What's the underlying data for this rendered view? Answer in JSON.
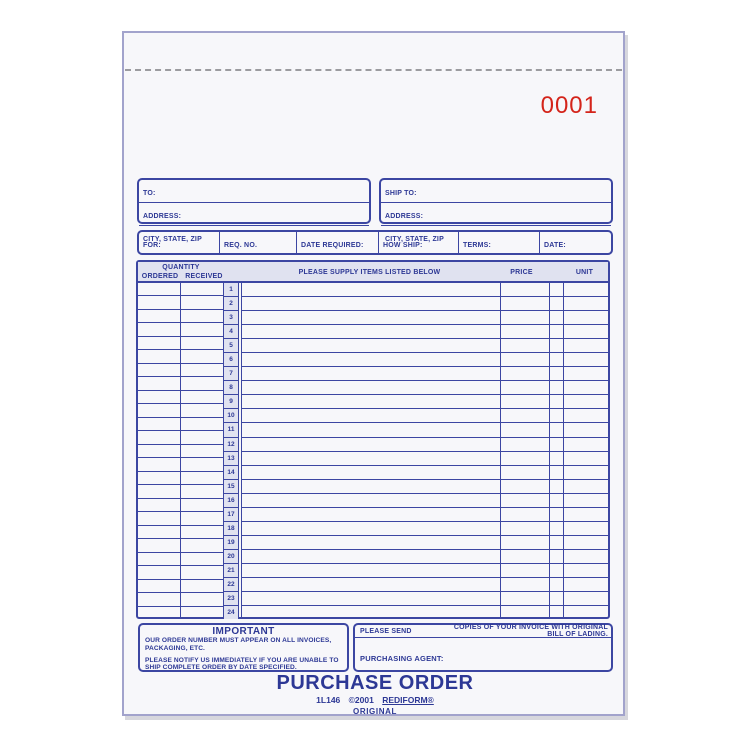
{
  "page": {
    "form_number": "0001",
    "colors": {
      "form_blue": "#2d3895",
      "number_red": "#d4241a",
      "shade_lavender": "#e0e2f0",
      "page_background": "#f7f7fa",
      "page_border": "#a2a3cc"
    }
  },
  "to_box": {
    "to_label": "TO:",
    "address_label": "ADDRESS:",
    "city_label": "CITY, STATE, ZIP"
  },
  "ship_box": {
    "ship_label": "SHIP TO:",
    "address_label": "ADDRESS:",
    "city_label": "CITY, STATE, ZIP"
  },
  "order_row": {
    "fields": [
      "FOR:",
      "REQ. NO.",
      "DATE REQUIRED:",
      "HOW SHIP:",
      "TERMS:",
      "DATE:"
    ]
  },
  "table": {
    "quantity_header": "QUANTITY",
    "ordered_header": "ORDERED",
    "received_header": "RECEIVED",
    "items_header": "PLEASE SUPPLY ITEMS LISTED BELOW",
    "price_header": "PRICE",
    "unit_header": "UNIT",
    "row_numbers": [
      "1",
      "2",
      "3",
      "4",
      "5",
      "6",
      "7",
      "8",
      "9",
      "10",
      "11",
      "12",
      "13",
      "14",
      "15",
      "16",
      "17",
      "18",
      "19",
      "20",
      "21",
      "22",
      "23",
      "24"
    ]
  },
  "important_box": {
    "title": "IMPORTANT",
    "line1": "OUR ORDER NUMBER MUST APPEAR ON ALL INVOICES, PACKAGING, ETC.",
    "line2": "PLEASE NOTIFY US IMMEDIATELY IF YOU ARE UNABLE TO SHIP COMPLETE ORDER BY DATE SPECIFIED."
  },
  "invoice_box": {
    "please_send_label": "PLEASE SEND",
    "copies_text": "COPIES OF YOUR INVOICE WITH ORIGINAL BILL OF LADING.",
    "purchasing_agent_label": "PURCHASING AGENT:"
  },
  "footer": {
    "title": "PURCHASE ORDER",
    "form_code": "1L146",
    "copyright": "©2001",
    "brand": "REDIFORM®",
    "copy_label": "ORIGINAL"
  }
}
